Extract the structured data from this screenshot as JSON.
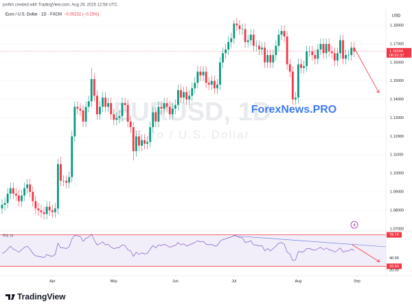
{
  "header": {
    "credit": "jonfint created with TradingView.com, Aug 29, 2025 12:58 UTC",
    "symbol": "Euro / U.S. Dollar · 1D · FXCM",
    "change": "−0.00232 (−0.20%)"
  },
  "watermark": {
    "symbol": "EURUSD, 1D",
    "description": "Euro / U.S. Dollar"
  },
  "brand": "ForexNews.PRO",
  "footer": "TradingView",
  "chart_data": [
    {
      "type": "candlestick",
      "currency": "USD",
      "countdown": "06:01:37",
      "up_color": "#089981",
      "down_color": "#f23645",
      "grid": true,
      "ylim": [
        1.0692,
        1.1893
      ],
      "yticks": [
        {
          "value": 1.07,
          "label": "1.07000"
        },
        {
          "value": 1.08,
          "label": "1.08000"
        },
        {
          "value": 1.09,
          "label": "1.09000"
        },
        {
          "value": 1.1,
          "label": "1.10000"
        },
        {
          "value": 1.11,
          "label": "1.11000"
        },
        {
          "value": 1.12,
          "label": "1.12000"
        },
        {
          "value": 1.13,
          "label": "1.13000"
        },
        {
          "value": 1.14,
          "label": "1.14000"
        },
        {
          "value": 1.15,
          "label": "1.15000"
        },
        {
          "value": 1.16,
          "label": "1.16000"
        },
        {
          "value": 1.17,
          "label": "1.17000"
        },
        {
          "value": 1.18,
          "label": "1.18000"
        }
      ],
      "open": [
        1.081,
        1.083,
        1.084,
        1.089,
        1.092,
        1.089,
        1.088,
        1.085,
        1.088,
        1.092,
        1.094,
        1.09,
        1.085,
        1.081,
        1.08,
        1.079,
        1.078,
        1.082,
        1.08,
        1.079,
        1.081,
        1.105,
        1.096,
        1.096,
        1.095,
        1.098,
        1.12,
        1.136,
        1.135,
        1.134,
        1.128,
        1.136,
        1.139,
        1.151,
        1.142,
        1.132,
        1.136,
        1.141,
        1.136,
        1.138,
        1.132,
        1.129,
        1.13,
        1.131,
        1.138,
        1.137,
        1.128,
        1.125,
        1.112,
        1.12,
        1.115,
        1.118,
        1.116,
        1.117,
        1.125,
        1.133,
        1.128,
        1.136,
        1.135,
        1.138,
        1.136,
        1.132,
        1.135,
        1.137,
        1.145,
        1.141,
        1.144,
        1.14,
        1.142,
        1.146,
        1.149,
        1.155,
        1.153,
        1.155,
        1.149,
        1.148,
        1.15,
        1.146,
        1.148,
        1.16,
        1.165,
        1.167,
        1.171,
        1.173,
        1.181,
        1.18,
        1.178,
        1.178,
        1.171,
        1.172,
        1.175,
        1.169,
        1.169,
        1.167,
        1.168,
        1.16,
        1.164,
        1.16,
        1.164,
        1.169,
        1.175,
        1.177,
        1.174,
        1.159,
        1.155,
        1.14,
        1.141,
        1.159,
        1.157,
        1.158,
        1.166,
        1.166,
        1.164,
        1.162,
        1.167,
        1.17,
        1.165,
        1.17,
        1.166,
        1.165,
        1.161,
        1.165,
        1.172,
        1.162,
        1.164,
        1.164,
        1.168
      ],
      "high": [
        1.086,
        1.087,
        1.092,
        1.095,
        1.095,
        1.092,
        1.091,
        1.091,
        1.095,
        1.097,
        1.097,
        1.093,
        1.088,
        1.084,
        1.083,
        1.082,
        1.085,
        1.085,
        1.083,
        1.084,
        1.108,
        1.109,
        1.099,
        1.099,
        1.101,
        1.123,
        1.139,
        1.139,
        1.138,
        1.137,
        1.139,
        1.142,
        1.157,
        1.154,
        1.145,
        1.139,
        1.144,
        1.144,
        1.141,
        1.141,
        1.135,
        1.133,
        1.134,
        1.141,
        1.141,
        1.14,
        1.131,
        1.128,
        1.123,
        1.123,
        1.121,
        1.121,
        1.12,
        1.128,
        1.136,
        1.136,
        1.139,
        1.139,
        1.141,
        1.141,
        1.139,
        1.138,
        1.14,
        1.148,
        1.148,
        1.147,
        1.147,
        1.145,
        1.149,
        1.152,
        1.158,
        1.158,
        1.158,
        1.158,
        1.152,
        1.153,
        1.153,
        1.151,
        1.163,
        1.168,
        1.17,
        1.174,
        1.176,
        1.183,
        1.184,
        1.183,
        1.181,
        1.181,
        1.175,
        1.178,
        1.178,
        1.172,
        1.172,
        1.171,
        1.171,
        1.167,
        1.167,
        1.167,
        1.172,
        1.178,
        1.18,
        1.18,
        1.177,
        1.162,
        1.158,
        1.144,
        1.162,
        1.162,
        1.161,
        1.169,
        1.169,
        1.169,
        1.167,
        1.17,
        1.173,
        1.173,
        1.173,
        1.173,
        1.169,
        1.168,
        1.168,
        1.175,
        1.175,
        1.167,
        1.167,
        1.171,
        1.171
      ],
      "low": [
        1.078,
        1.08,
        1.081,
        1.086,
        1.086,
        1.085,
        1.082,
        1.082,
        1.085,
        1.089,
        1.087,
        1.082,
        1.078,
        1.077,
        1.076,
        1.075,
        1.075,
        1.077,
        1.076,
        1.076,
        1.078,
        1.093,
        1.093,
        1.092,
        1.092,
        1.095,
        1.117,
        1.132,
        1.131,
        1.125,
        1.125,
        1.133,
        1.136,
        1.139,
        1.129,
        1.129,
        1.133,
        1.133,
        1.133,
        1.129,
        1.126,
        1.126,
        1.127,
        1.128,
        1.134,
        1.125,
        1.122,
        1.107,
        1.109,
        1.112,
        1.112,
        1.113,
        1.113,
        1.114,
        1.122,
        1.125,
        1.125,
        1.132,
        1.132,
        1.133,
        1.129,
        1.129,
        1.132,
        1.134,
        1.138,
        1.138,
        1.137,
        1.137,
        1.139,
        1.143,
        1.146,
        1.15,
        1.15,
        1.146,
        1.145,
        1.145,
        1.143,
        1.143,
        1.145,
        1.157,
        1.162,
        1.164,
        1.168,
        1.17,
        1.177,
        1.175,
        1.175,
        1.168,
        1.168,
        1.169,
        1.166,
        1.166,
        1.164,
        1.164,
        1.157,
        1.157,
        1.157,
        1.157,
        1.161,
        1.166,
        1.172,
        1.171,
        1.156,
        1.152,
        1.137,
        1.137,
        1.138,
        1.154,
        1.154,
        1.155,
        1.163,
        1.161,
        1.159,
        1.159,
        1.164,
        1.162,
        1.162,
        1.163,
        1.162,
        1.158,
        1.158,
        1.162,
        1.159,
        1.159,
        1.161,
        1.161,
        1.163
      ],
      "close": [
        1.083,
        1.084,
        1.089,
        1.092,
        1.089,
        1.088,
        1.085,
        1.088,
        1.092,
        1.094,
        1.09,
        1.085,
        1.081,
        1.08,
        1.079,
        1.078,
        1.082,
        1.08,
        1.079,
        1.081,
        1.105,
        1.096,
        1.096,
        1.095,
        1.098,
        1.12,
        1.136,
        1.135,
        1.134,
        1.128,
        1.136,
        1.139,
        1.151,
        1.142,
        1.132,
        1.136,
        1.141,
        1.136,
        1.138,
        1.132,
        1.129,
        1.13,
        1.131,
        1.138,
        1.137,
        1.128,
        1.125,
        1.112,
        1.12,
        1.115,
        1.118,
        1.116,
        1.117,
        1.125,
        1.133,
        1.128,
        1.136,
        1.135,
        1.138,
        1.136,
        1.132,
        1.135,
        1.137,
        1.145,
        1.141,
        1.144,
        1.14,
        1.142,
        1.146,
        1.149,
        1.155,
        1.153,
        1.155,
        1.149,
        1.148,
        1.15,
        1.146,
        1.148,
        1.16,
        1.165,
        1.167,
        1.171,
        1.173,
        1.181,
        1.18,
        1.178,
        1.178,
        1.171,
        1.172,
        1.175,
        1.169,
        1.169,
        1.167,
        1.168,
        1.16,
        1.164,
        1.16,
        1.164,
        1.169,
        1.175,
        1.177,
        1.174,
        1.159,
        1.155,
        1.14,
        1.141,
        1.159,
        1.157,
        1.158,
        1.166,
        1.166,
        1.164,
        1.162,
        1.167,
        1.17,
        1.165,
        1.17,
        1.166,
        1.165,
        1.161,
        1.165,
        1.172,
        1.162,
        1.164,
        1.164,
        1.168,
        1.16594
      ]
    },
    {
      "type": "line",
      "name": "RSI 14",
      "color": "#7e57c2",
      "level_color": "#f23645",
      "ylim": [
        12,
        84
      ],
      "yticks": [
        {
          "value": 20,
          "label": "20.00"
        },
        {
          "value": 40,
          "label": "40.00"
        }
      ],
      "levels": [
        78.74,
        {
          "value": 26.5,
          "label": "26.50"
        }
      ],
      "xticks": [
        {
          "value": 18,
          "label": "Apr"
        },
        {
          "value": 40,
          "label": "May"
        },
        {
          "value": 62,
          "label": "Jun"
        },
        {
          "value": 83,
          "label": "Jul"
        },
        {
          "value": 106,
          "label": "Aug"
        },
        {
          "value": 127,
          "label": "Sep"
        }
      ],
      "values": [
        48,
        50,
        55,
        60,
        55,
        53,
        50,
        54,
        58,
        60,
        55,
        48,
        44,
        43,
        42,
        41,
        46,
        44,
        43,
        46,
        65,
        57,
        57,
        56,
        59,
        72,
        78,
        77,
        76,
        68,
        73,
        75,
        80,
        70,
        62,
        64,
        67,
        62,
        63,
        58,
        56,
        57,
        58,
        62,
        61,
        54,
        52,
        43,
        50,
        46,
        49,
        47,
        48,
        55,
        61,
        57,
        62,
        61,
        63,
        61,
        58,
        60,
        61,
        66,
        62,
        64,
        60,
        62,
        64,
        66,
        69,
        67,
        68,
        63,
        62,
        63,
        60,
        61,
        68,
        71,
        72,
        74,
        75,
        78,
        77,
        74,
        74,
        66,
        67,
        69,
        62,
        62,
        60,
        61,
        52,
        56,
        52,
        56,
        60,
        65,
        66,
        63,
        50,
        47,
        36,
        37,
        51,
        50,
        51,
        56,
        56,
        54,
        53,
        56,
        58,
        54,
        57,
        54,
        53,
        50,
        53,
        57,
        50,
        52,
        52,
        55,
        53
      ]
    }
  ]
}
